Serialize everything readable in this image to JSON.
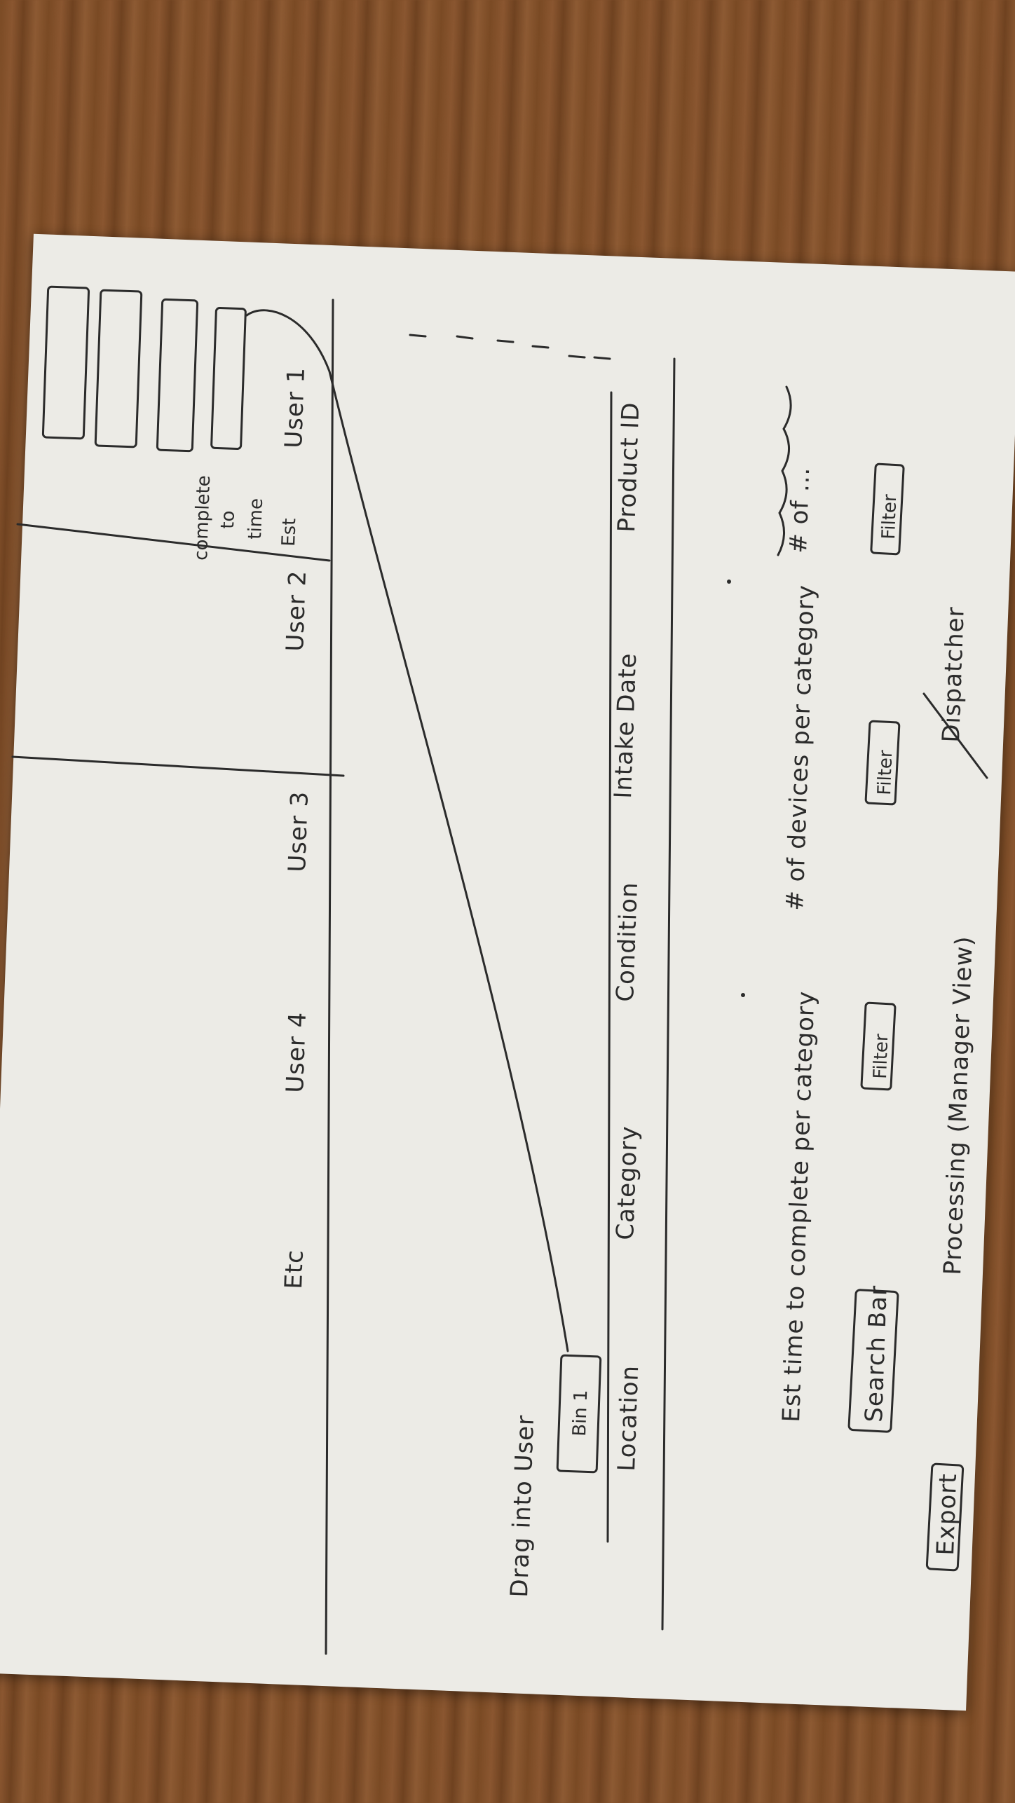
{
  "title": {
    "crossed_word": "Dispatcher",
    "main": "Processing (Manager View)"
  },
  "top_controls": {
    "filters": [
      "Filter",
      "Filter",
      "Filter"
    ],
    "search": "Search Bar",
    "export": "Export"
  },
  "stats": {
    "scribbled": "# of ...",
    "count_per_category": "# of devices per category",
    "est_time": "Est time to complete per category"
  },
  "table_columns": [
    "Product ID",
    "Intake Date",
    "Condition",
    "Category",
    "Location"
  ],
  "card": {
    "label": "Bin 1",
    "note": "Drag into User"
  },
  "users": {
    "columns": [
      "User 1",
      "User 2",
      "User 3",
      "User 4",
      "Etc"
    ],
    "note_lines": [
      "Est",
      "time",
      "to",
      "complete"
    ]
  }
}
